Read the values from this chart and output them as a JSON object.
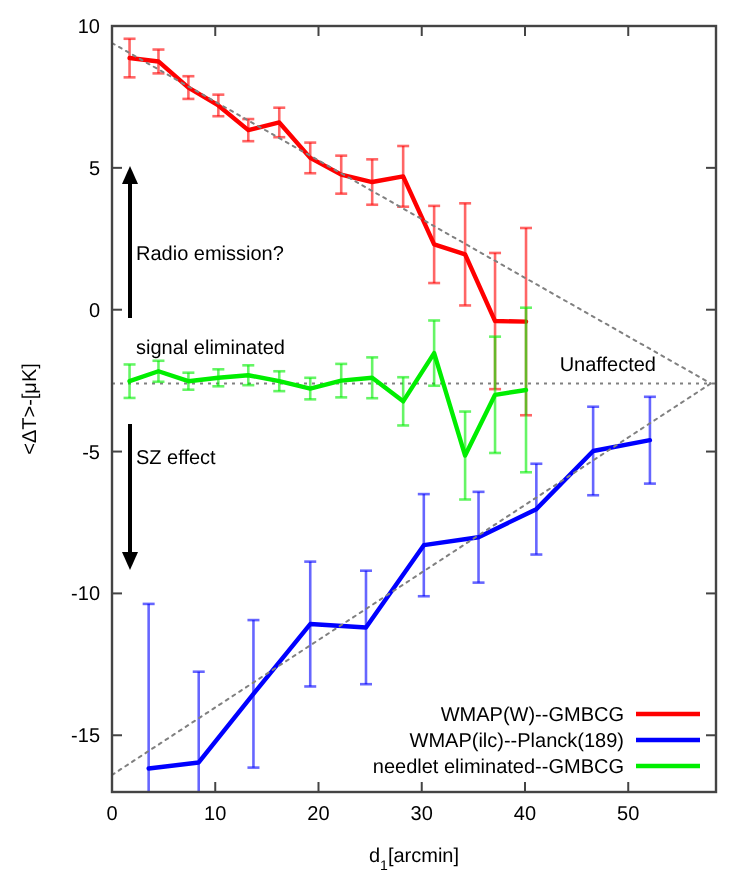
{
  "chart_data": {
    "type": "line",
    "xlabel": "d$_{1}$[arcmin]",
    "ylabel": "<ΔT>-[μK]",
    "xlim": [
      0,
      58.5
    ],
    "ylim": [
      -17,
      10
    ],
    "xticks": [
      0,
      10,
      20,
      30,
      40,
      50
    ],
    "yticks": [
      -15,
      -10,
      -5,
      0,
      5,
      10
    ],
    "grid": false,
    "legend": "bottom right",
    "line_style": "solid",
    "series": [
      {
        "name": "WMAP(W)--GMBCG",
        "color": "#ff0000",
        "x": [
          1.7,
          4.5,
          7.4,
          10.3,
          13.2,
          16.2,
          19.2,
          22.2,
          25.2,
          28.2,
          31.2,
          34.2,
          37.1,
          40.1
        ],
        "values": [
          8.87,
          8.75,
          7.83,
          7.2,
          6.33,
          6.6,
          5.35,
          4.76,
          4.5,
          4.7,
          2.3,
          1.95,
          -0.4,
          -0.42
        ],
        "errors": [
          0.68,
          0.42,
          0.4,
          0.38,
          0.39,
          0.52,
          0.54,
          0.67,
          0.8,
          1.07,
          1.36,
          1.8,
          2.4,
          3.3
        ]
      },
      {
        "name": "WMAP(ilc)--Planck(189)",
        "color": "#0000ff",
        "x": [
          3.55,
          8.4,
          13.7,
          19.2,
          24.6,
          30.2,
          35.5,
          41.1,
          46.6,
          52.1
        ],
        "values": [
          -16.17,
          -15.96,
          -13.54,
          -11.08,
          -11.2,
          -8.3,
          -8.02,
          -7.03,
          -4.98,
          -4.6
        ],
        "errors": [
          [
            -17,
            -10.37
          ],
          [
            -17,
            -12.76
          ],
          2.6,
          2.2,
          2.0,
          1.8,
          1.6,
          1.6,
          1.56,
          1.53
        ]
      },
      {
        "name": "needlet eliminated--GMBCG",
        "color": "#00ee00",
        "x": [
          1.7,
          4.5,
          7.4,
          10.3,
          13.2,
          16.2,
          19.2,
          22.2,
          25.2,
          28.2,
          31.2,
          34.2,
          37.1,
          40.1
        ],
        "values": [
          -2.52,
          -2.17,
          -2.52,
          -2.4,
          -2.31,
          -2.52,
          -2.78,
          -2.5,
          -2.4,
          -3.23,
          -1.53,
          -5.14,
          -3.0,
          -2.83
        ],
        "errors": [
          0.59,
          0.37,
          0.3,
          0.3,
          0.35,
          0.35,
          0.38,
          0.59,
          0.72,
          0.85,
          1.15,
          1.55,
          2.05,
          2.9
        ]
      },
      {
        "type": "line",
        "color": "#808080",
        "line_style": "dotted",
        "x": [
          0,
          58
        ],
        "values": [
          9.4,
          -2.6
        ]
      },
      {
        "type": "line",
        "color": "#808080",
        "line_style": "dotted",
        "x": [
          0,
          58
        ],
        "values": [
          -16.4,
          -2.6
        ]
      }
    ],
    "ref_lines": [
      {
        "axis": "y",
        "value": -2.6,
        "label": "Unaffected",
        "color": "#808080",
        "line_style": "dotted"
      }
    ],
    "annotations": [
      "Radio emission?",
      "signal eliminated",
      "SZ effect"
    ]
  }
}
